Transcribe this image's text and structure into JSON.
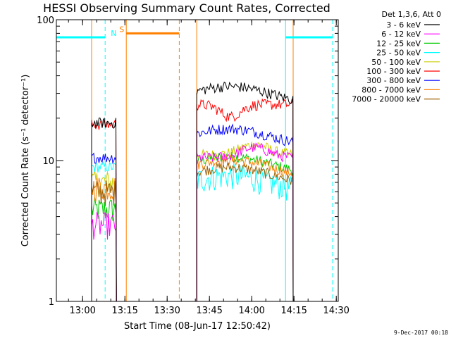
{
  "chart_data": {
    "type": "line",
    "title": "HESSI Observing Summary Count Rates, Corrected",
    "xlabel": "Start Time (08-Jun-17 12:50:42)",
    "ylabel": "Corrected Count Rate (s⁻¹ detector⁻¹)",
    "y_scale": "log",
    "ylim": [
      1,
      100
    ],
    "y_ticks": [
      {
        "label": "1",
        "value": 1
      },
      {
        "label": "10",
        "value": 10
      },
      {
        "label": "100",
        "value": 100
      }
    ],
    "xlim_minutes_after_start": [
      0,
      100
    ],
    "x_ticks": [
      {
        "label": "13:00",
        "minutes": 9.3
      },
      {
        "label": "13:15",
        "minutes": 24.3
      },
      {
        "label": "13:30",
        "minutes": 39.3
      },
      {
        "label": "13:45",
        "minutes": 54.3
      },
      {
        "label": "14:00",
        "minutes": 69.3
      },
      {
        "label": "14:15",
        "minutes": 84.3
      },
      {
        "label": "14:30",
        "minutes": 99.3
      }
    ],
    "legend_title": "Det 1,3,6, Att 0",
    "legend_position": "right",
    "series": [
      {
        "name": "3 - 6 keV",
        "color": "#000000",
        "seg1": 18.5,
        "seg2": 30
      },
      {
        "name": "6 - 12 keV",
        "color": "#ff00ff",
        "seg1": 3.5,
        "seg2": 10.5
      },
      {
        "name": "12 - 25 keV",
        "color": "#00cc00",
        "seg1": 4.5,
        "seg2": 9.5
      },
      {
        "name": "25 - 50 keV",
        "color": "#00ffff",
        "seg1": 9,
        "seg2": 7
      },
      {
        "name": "50 - 100 keV",
        "color": "#cccc00",
        "seg1": 7,
        "seg2": 11
      },
      {
        "name": "100 - 300 keV",
        "color": "#ff0000",
        "seg1": 18,
        "seg2": 25
      },
      {
        "name": "300 - 800 keV",
        "color": "#0000ff",
        "seg1": 10.5,
        "seg2": 15
      },
      {
        "name": "800 - 7000 keV",
        "color": "#ff8000",
        "seg1": 6.5,
        "seg2": 9
      },
      {
        "name": "7000 - 20000 keV",
        "color": "#a06000",
        "seg1": 6,
        "seg2": 8
      }
    ],
    "data_segments_minutes": [
      [
        12.5,
        21.3
      ],
      [
        49.8,
        84.0
      ]
    ],
    "flag_bars": [
      {
        "label": "N",
        "color": "#00ffff",
        "value": 75,
        "ranges": [
          [
            0,
            17.3
          ],
          [
            81.3,
            98.0
          ]
        ]
      },
      {
        "label": "S",
        "color": "#ff8000",
        "value": 80,
        "ranges": [
          [
            24.8,
            43.6
          ]
        ]
      }
    ],
    "vertical_markers": [
      {
        "minutes": 0,
        "color": "#00ffff",
        "style": "solid"
      },
      {
        "minutes": 17.3,
        "color": "#00ffff",
        "style": "dashed"
      },
      {
        "minutes": 12.5,
        "color": "#ff8000",
        "style": "solid"
      },
      {
        "minutes": 24.8,
        "color": "#ff8000",
        "style": "solid"
      },
      {
        "minutes": 43.6,
        "color": "#ff8000",
        "style": "dashed"
      },
      {
        "minutes": 49.8,
        "color": "#ff8000",
        "style": "solid"
      },
      {
        "minutes": 81.3,
        "color": "#00ffff",
        "style": "solid"
      },
      {
        "minutes": 84.0,
        "color": "#ff8000",
        "style": "solid"
      },
      {
        "minutes": 98.0,
        "color": "#00ffff",
        "style": "dashed"
      }
    ],
    "timestamp": "9-Dec-2017 00:18"
  }
}
